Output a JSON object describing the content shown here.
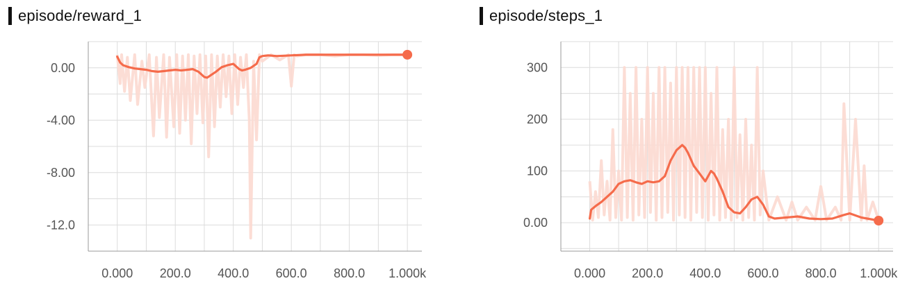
{
  "chart_data": [
    {
      "type": "line",
      "title": "episode/reward_1",
      "xlabel": "",
      "ylabel": "",
      "xlim": [
        -100,
        1050
      ],
      "ylim": [
        -14,
        2
      ],
      "x_ticks": [
        0,
        200,
        400,
        600,
        800,
        1000
      ],
      "x_tick_labels": [
        "0.000",
        "200.0",
        "400.0",
        "600.0",
        "800.0",
        "1.000k"
      ],
      "y_ticks": [
        0,
        -4,
        -8,
        -12
      ],
      "y_tick_labels": [
        "0.00",
        "-4.00",
        "-8.00",
        "-12.0"
      ],
      "grid": true,
      "colors": {
        "smoothed": "#f56b4b",
        "raw": "#fcd9d0",
        "grid": "#dcdcdc"
      },
      "series": [
        {
          "role": "smoothed",
          "x": [
            0,
            10,
            20,
            40,
            60,
            80,
            100,
            120,
            140,
            160,
            180,
            200,
            220,
            240,
            260,
            280,
            300,
            310,
            320,
            340,
            360,
            380,
            400,
            420,
            430,
            440,
            460,
            480,
            490,
            500,
            520,
            550,
            600,
            650,
            700,
            800,
            900,
            1000
          ],
          "y": [
            0.85,
            0.4,
            0.2,
            0.05,
            -0.05,
            -0.1,
            -0.15,
            -0.25,
            -0.3,
            -0.25,
            -0.2,
            -0.15,
            -0.2,
            -0.15,
            -0.1,
            -0.3,
            -0.7,
            -0.75,
            -0.6,
            -0.3,
            0.05,
            0.2,
            0.3,
            -0.1,
            -0.2,
            -0.15,
            0.0,
            0.3,
            0.8,
            0.9,
            0.95,
            0.9,
            0.95,
            1.0,
            1.0,
            1.0,
            1.0,
            1.0
          ]
        },
        {
          "role": "raw",
          "x": [
            0,
            10,
            15,
            25,
            35,
            45,
            60,
            70,
            85,
            95,
            110,
            125,
            135,
            145,
            160,
            170,
            180,
            195,
            205,
            215,
            225,
            235,
            245,
            255,
            265,
            275,
            285,
            295,
            305,
            315,
            325,
            335,
            345,
            355,
            365,
            375,
            385,
            395,
            405,
            415,
            425,
            435,
            445,
            455,
            460,
            470,
            480,
            490,
            500,
            530,
            560,
            590,
            600,
            610,
            620,
            650,
            700,
            750,
            800,
            850,
            900,
            950,
            1000
          ],
          "y": [
            1.0,
            -1.2,
            1.0,
            -1.8,
            0.8,
            -2.5,
            1.0,
            -2.8,
            0.5,
            -1.5,
            1.0,
            -5.2,
            0.8,
            -3.8,
            1.0,
            -5.3,
            0.8,
            -4.5,
            1.0,
            -5.0,
            0.9,
            -4.0,
            1.0,
            -5.8,
            0.9,
            -3.5,
            1.0,
            -4.2,
            0.9,
            -6.8,
            1.0,
            -4.5,
            0.9,
            -3.0,
            1.0,
            -2.2,
            0.9,
            -3.5,
            1.0,
            -2.8,
            0.8,
            -1.5,
            1.0,
            -4.0,
            -13.0,
            0.5,
            -5.5,
            1.0,
            0.5,
            1.0,
            0.6,
            1.0,
            -1.4,
            1.0,
            0.9,
            1.0,
            1.0,
            0.9,
            1.0,
            1.0,
            0.95,
            1.0,
            1.0
          ]
        }
      ]
    },
    {
      "type": "line",
      "title": "episode/steps_1",
      "xlabel": "",
      "ylabel": "",
      "xlim": [
        -100,
        1050
      ],
      "ylim": [
        -55,
        350
      ],
      "x_ticks": [
        0,
        200,
        400,
        600,
        800,
        1000
      ],
      "x_tick_labels": [
        "0.000",
        "200.0",
        "400.0",
        "600.0",
        "800.0",
        "1.000k"
      ],
      "y_ticks": [
        300,
        200,
        100,
        0
      ],
      "y_tick_labels": [
        "300",
        "200",
        "100",
        "0.00"
      ],
      "grid": true,
      "colors": {
        "smoothed": "#f56b4b",
        "raw": "#fcd9d0",
        "grid": "#dcdcdc"
      },
      "series": [
        {
          "role": "smoothed",
          "x": [
            0,
            5,
            20,
            40,
            60,
            80,
            100,
            120,
            140,
            160,
            180,
            200,
            220,
            240,
            260,
            280,
            300,
            320,
            330,
            340,
            360,
            380,
            400,
            420,
            430,
            440,
            460,
            480,
            500,
            520,
            540,
            560,
            580,
            600,
            620,
            640,
            680,
            720,
            760,
            800,
            840,
            880,
            900,
            940,
            980,
            1000
          ],
          "y": [
            8,
            25,
            32,
            40,
            50,
            60,
            75,
            80,
            82,
            78,
            75,
            80,
            78,
            80,
            90,
            120,
            140,
            150,
            145,
            135,
            110,
            95,
            80,
            100,
            95,
            85,
            60,
            30,
            20,
            18,
            30,
            45,
            50,
            35,
            12,
            8,
            10,
            12,
            8,
            7,
            8,
            15,
            18,
            10,
            6,
            4
          ]
        },
        {
          "role": "raw",
          "x": [
            0,
            10,
            20,
            30,
            40,
            50,
            60,
            70,
            80,
            90,
            100,
            110,
            120,
            130,
            140,
            150,
            160,
            170,
            180,
            190,
            200,
            210,
            220,
            230,
            240,
            250,
            260,
            270,
            280,
            290,
            300,
            310,
            320,
            330,
            340,
            350,
            360,
            370,
            380,
            390,
            400,
            410,
            420,
            430,
            440,
            450,
            460,
            470,
            480,
            490,
            500,
            510,
            520,
            530,
            540,
            550,
            560,
            570,
            580,
            590,
            600,
            620,
            650,
            680,
            700,
            720,
            750,
            780,
            800,
            820,
            850,
            870,
            880,
            900,
            920,
            940,
            950,
            960,
            980,
            1000
          ],
          "y": [
            80,
            5,
            60,
            10,
            120,
            15,
            80,
            5,
            180,
            10,
            100,
            5,
            300,
            10,
            250,
            5,
            300,
            15,
            200,
            10,
            300,
            20,
            250,
            5,
            300,
            10,
            300,
            20,
            270,
            5,
            300,
            15,
            300,
            10,
            300,
            5,
            300,
            20,
            300,
            10,
            300,
            5,
            250,
            15,
            300,
            5,
            180,
            10,
            200,
            5,
            300,
            10,
            170,
            5,
            200,
            10,
            150,
            5,
            300,
            15,
            100,
            5,
            50,
            5,
            40,
            5,
            30,
            5,
            70,
            5,
            30,
            5,
            230,
            5,
            200,
            5,
            110,
            5,
            40,
            5
          ]
        }
      ]
    }
  ]
}
